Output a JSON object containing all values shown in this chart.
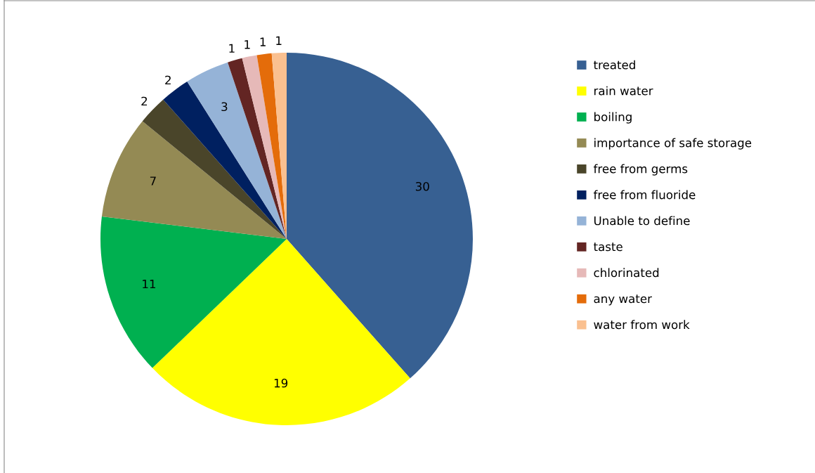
{
  "chart_data": {
    "type": "pie",
    "categories": [
      "treated",
      "rain water",
      "boiling",
      "importance of safe storage",
      "free from germs",
      "free from fluoride",
      "Unable to define",
      "taste",
      "chlorinated",
      "any water",
      "water from work"
    ],
    "values": [
      30,
      19,
      11,
      7,
      2,
      2,
      3,
      1,
      1,
      1,
      1
    ],
    "colors": [
      "#376092",
      "#ffff00",
      "#00b050",
      "#948a54",
      "#4a452a",
      "#002060",
      "#95b3d7",
      "#632523",
      "#e6b9b8",
      "#e46c0a",
      "#fac090"
    ],
    "data_labels": true,
    "legend": "right"
  }
}
